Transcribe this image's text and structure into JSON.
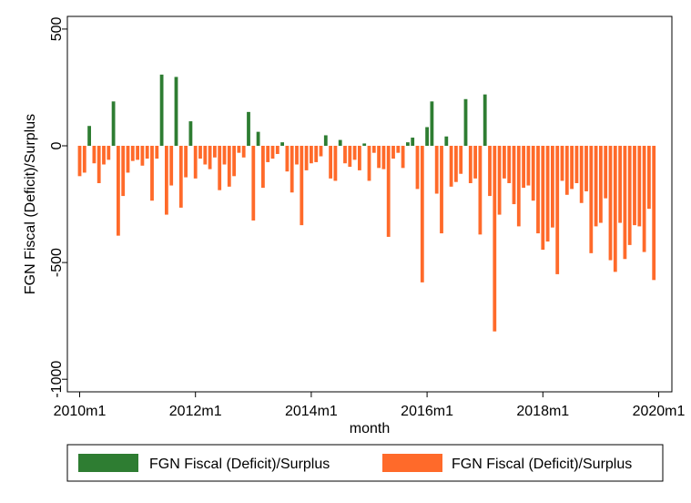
{
  "chart_data": {
    "type": "bar",
    "xlabel": "month",
    "ylabel": "FGN Fiscal (Deficit)/Surplus",
    "ylim": [
      -1000,
      500
    ],
    "yticks": [
      500,
      0,
      -500,
      -1000
    ],
    "ytick_labels": [
      "500",
      "0",
      "-500",
      "-1000"
    ],
    "xticks": [
      0,
      24,
      48,
      72,
      96,
      120
    ],
    "xtick_labels": [
      "2010m1",
      "2012m1",
      "2014m1",
      "2016m1",
      "2018m1",
      "2020m1"
    ],
    "x_start": "2010m1",
    "grid": false,
    "legend_position": "bottom",
    "series": [
      {
        "name": "FGN Fiscal (Deficit)/Surplus",
        "color": "#2e7d32",
        "role": "surplus"
      },
      {
        "name": "FGN Fiscal (Deficit)/Surplus",
        "color": "#ff6a2a",
        "role": "deficit"
      }
    ],
    "months": [
      "2010m1",
      "2010m2",
      "2010m3",
      "2010m4",
      "2010m5",
      "2010m6",
      "2010m7",
      "2010m8",
      "2010m9",
      "2010m10",
      "2010m11",
      "2010m12",
      "2011m1",
      "2011m2",
      "2011m3",
      "2011m4",
      "2011m5",
      "2011m6",
      "2011m7",
      "2011m8",
      "2011m9",
      "2011m10",
      "2011m11",
      "2011m12",
      "2012m1",
      "2012m2",
      "2012m3",
      "2012m4",
      "2012m5",
      "2012m6",
      "2012m7",
      "2012m8",
      "2012m9",
      "2012m10",
      "2012m11",
      "2012m12",
      "2013m1",
      "2013m2",
      "2013m3",
      "2013m4",
      "2013m5",
      "2013m6",
      "2013m7",
      "2013m8",
      "2013m9",
      "2013m10",
      "2013m11",
      "2013m12",
      "2014m1",
      "2014m2",
      "2014m3",
      "2014m4",
      "2014m5",
      "2014m6",
      "2014m7",
      "2014m8",
      "2014m9",
      "2014m10",
      "2014m11",
      "2014m12",
      "2015m1",
      "2015m2",
      "2015m3",
      "2015m4",
      "2015m5",
      "2015m6",
      "2015m7",
      "2015m8",
      "2015m9",
      "2015m10",
      "2015m11",
      "2015m12",
      "2016m1",
      "2016m2",
      "2016m3",
      "2016m4",
      "2016m5",
      "2016m6",
      "2016m7",
      "2016m8",
      "2016m9",
      "2016m10",
      "2016m11",
      "2016m12",
      "2017m1",
      "2017m2",
      "2017m3",
      "2017m4",
      "2017m5",
      "2017m6",
      "2017m7",
      "2017m8",
      "2017m9",
      "2017m10",
      "2017m11",
      "2017m12",
      "2018m1",
      "2018m2",
      "2018m3",
      "2018m4",
      "2018m5",
      "2018m6",
      "2018m7",
      "2018m8",
      "2018m9",
      "2018m10",
      "2018m11",
      "2018m12",
      "2019m1",
      "2019m2",
      "2019m3",
      "2019m4",
      "2019m5",
      "2019m6",
      "2019m7",
      "2019m8",
      "2019m9",
      "2019m10",
      "2019m11",
      "2019m12"
    ],
    "values": [
      -130,
      -115,
      85,
      -75,
      -160,
      -80,
      -60,
      190,
      -385,
      -215,
      -115,
      -65,
      -60,
      -85,
      -55,
      -235,
      -55,
      305,
      -295,
      -170,
      295,
      -265,
      -135,
      105,
      -140,
      -55,
      -80,
      -100,
      -50,
      -190,
      -80,
      -175,
      -130,
      -30,
      -50,
      145,
      -320,
      60,
      -180,
      -70,
      -55,
      -35,
      15,
      -110,
      -200,
      -80,
      -340,
      -105,
      -75,
      -70,
      -45,
      45,
      -140,
      -150,
      25,
      -75,
      -90,
      -60,
      -105,
      10,
      -150,
      -30,
      -95,
      -100,
      -390,
      -55,
      -30,
      -95,
      15,
      35,
      -185,
      -585,
      80,
      190,
      -205,
      -375,
      40,
      -175,
      -155,
      -120,
      200,
      -160,
      -140,
      -380,
      220,
      -215,
      -795,
      -295,
      -140,
      -160,
      -250,
      -345,
      -180,
      -170,
      -235,
      -375,
      -445,
      -410,
      -350,
      -550,
      -150,
      -210,
      -185,
      -160,
      -245,
      -195,
      -460,
      -345,
      -330,
      -225,
      -490,
      -540,
      -330,
      -485,
      -425,
      -340,
      -345,
      -455,
      -270,
      -575
    ]
  }
}
